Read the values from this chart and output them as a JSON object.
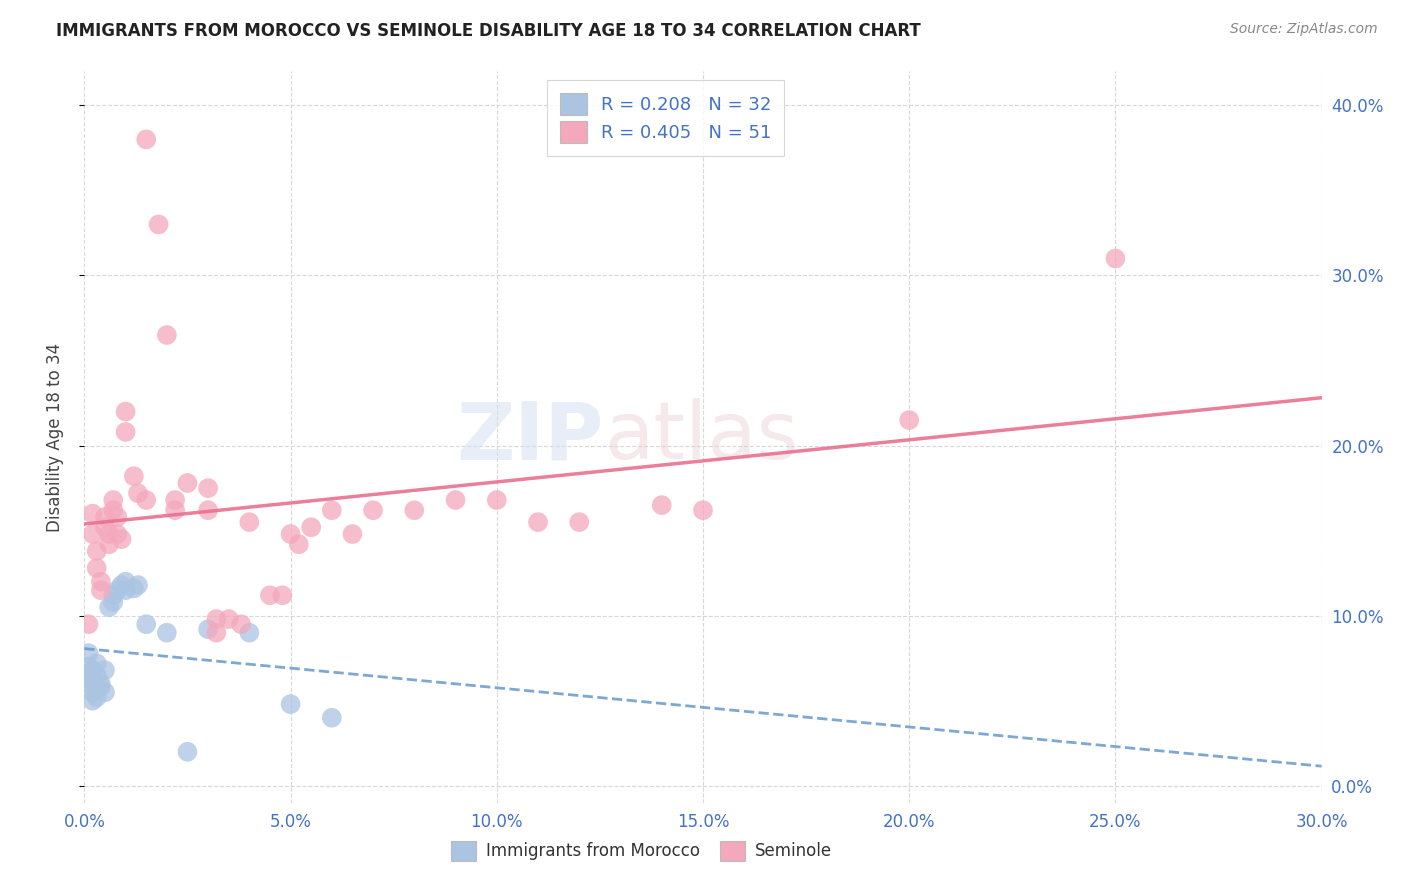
{
  "title": "IMMIGRANTS FROM MOROCCO VS SEMINOLE DISABILITY AGE 18 TO 34 CORRELATION CHART",
  "source": "Source: ZipAtlas.com",
  "xlim": [
    0.0,
    0.3
  ],
  "ylim": [
    -0.01,
    0.42
  ],
  "watermark_zip": "ZIP",
  "watermark_atlas": "atlas",
  "legend_r1": "R = 0.208",
  "legend_n1": "N = 32",
  "legend_r2": "R = 0.405",
  "legend_n2": "N = 51",
  "legend_label1": "Immigrants from Morocco",
  "legend_label2": "Seminole",
  "color_blue": "#aac4e2",
  "color_pink": "#f4a8bc",
  "color_blue_text": "#4472c4",
  "trendline_blue_color": "#6699cc",
  "trendline_pink_color": "#e87090",
  "blue_scatter": [
    [
      0.001,
      0.078
    ],
    [
      0.001,
      0.07
    ],
    [
      0.001,
      0.065
    ],
    [
      0.001,
      0.06
    ],
    [
      0.002,
      0.068
    ],
    [
      0.002,
      0.062
    ],
    [
      0.002,
      0.055
    ],
    [
      0.002,
      0.05
    ],
    [
      0.003,
      0.072
    ],
    [
      0.003,
      0.065
    ],
    [
      0.003,
      0.058
    ],
    [
      0.003,
      0.052
    ],
    [
      0.004,
      0.06
    ],
    [
      0.004,
      0.058
    ],
    [
      0.005,
      0.068
    ],
    [
      0.005,
      0.055
    ],
    [
      0.006,
      0.105
    ],
    [
      0.007,
      0.112
    ],
    [
      0.007,
      0.108
    ],
    [
      0.008,
      0.115
    ],
    [
      0.009,
      0.118
    ],
    [
      0.01,
      0.12
    ],
    [
      0.01,
      0.115
    ],
    [
      0.012,
      0.116
    ],
    [
      0.013,
      0.118
    ],
    [
      0.015,
      0.095
    ],
    [
      0.02,
      0.09
    ],
    [
      0.03,
      0.092
    ],
    [
      0.04,
      0.09
    ],
    [
      0.05,
      0.048
    ],
    [
      0.06,
      0.04
    ],
    [
      0.025,
      0.02
    ]
  ],
  "pink_scatter": [
    [
      0.001,
      0.095
    ],
    [
      0.002,
      0.16
    ],
    [
      0.002,
      0.148
    ],
    [
      0.003,
      0.138
    ],
    [
      0.003,
      0.128
    ],
    [
      0.004,
      0.12
    ],
    [
      0.004,
      0.115
    ],
    [
      0.005,
      0.158
    ],
    [
      0.005,
      0.152
    ],
    [
      0.006,
      0.148
    ],
    [
      0.006,
      0.142
    ],
    [
      0.007,
      0.168
    ],
    [
      0.007,
      0.162
    ],
    [
      0.008,
      0.158
    ],
    [
      0.008,
      0.148
    ],
    [
      0.009,
      0.145
    ],
    [
      0.01,
      0.22
    ],
    [
      0.01,
      0.208
    ],
    [
      0.012,
      0.182
    ],
    [
      0.013,
      0.172
    ],
    [
      0.015,
      0.38
    ],
    [
      0.018,
      0.33
    ],
    [
      0.02,
      0.265
    ],
    [
      0.022,
      0.168
    ],
    [
      0.022,
      0.162
    ],
    [
      0.025,
      0.178
    ],
    [
      0.03,
      0.175
    ],
    [
      0.03,
      0.162
    ],
    [
      0.032,
      0.098
    ],
    [
      0.032,
      0.09
    ],
    [
      0.035,
      0.098
    ],
    [
      0.038,
      0.095
    ],
    [
      0.05,
      0.148
    ],
    [
      0.052,
      0.142
    ],
    [
      0.055,
      0.152
    ],
    [
      0.06,
      0.162
    ],
    [
      0.065,
      0.148
    ],
    [
      0.07,
      0.162
    ],
    [
      0.08,
      0.162
    ],
    [
      0.09,
      0.168
    ],
    [
      0.1,
      0.168
    ],
    [
      0.11,
      0.155
    ],
    [
      0.12,
      0.155
    ],
    [
      0.14,
      0.165
    ],
    [
      0.15,
      0.162
    ],
    [
      0.2,
      0.215
    ],
    [
      0.25,
      0.31
    ],
    [
      0.015,
      0.168
    ],
    [
      0.04,
      0.155
    ],
    [
      0.045,
      0.112
    ],
    [
      0.048,
      0.112
    ]
  ],
  "background_color": "#ffffff",
  "grid_color": "#d8d8d8"
}
